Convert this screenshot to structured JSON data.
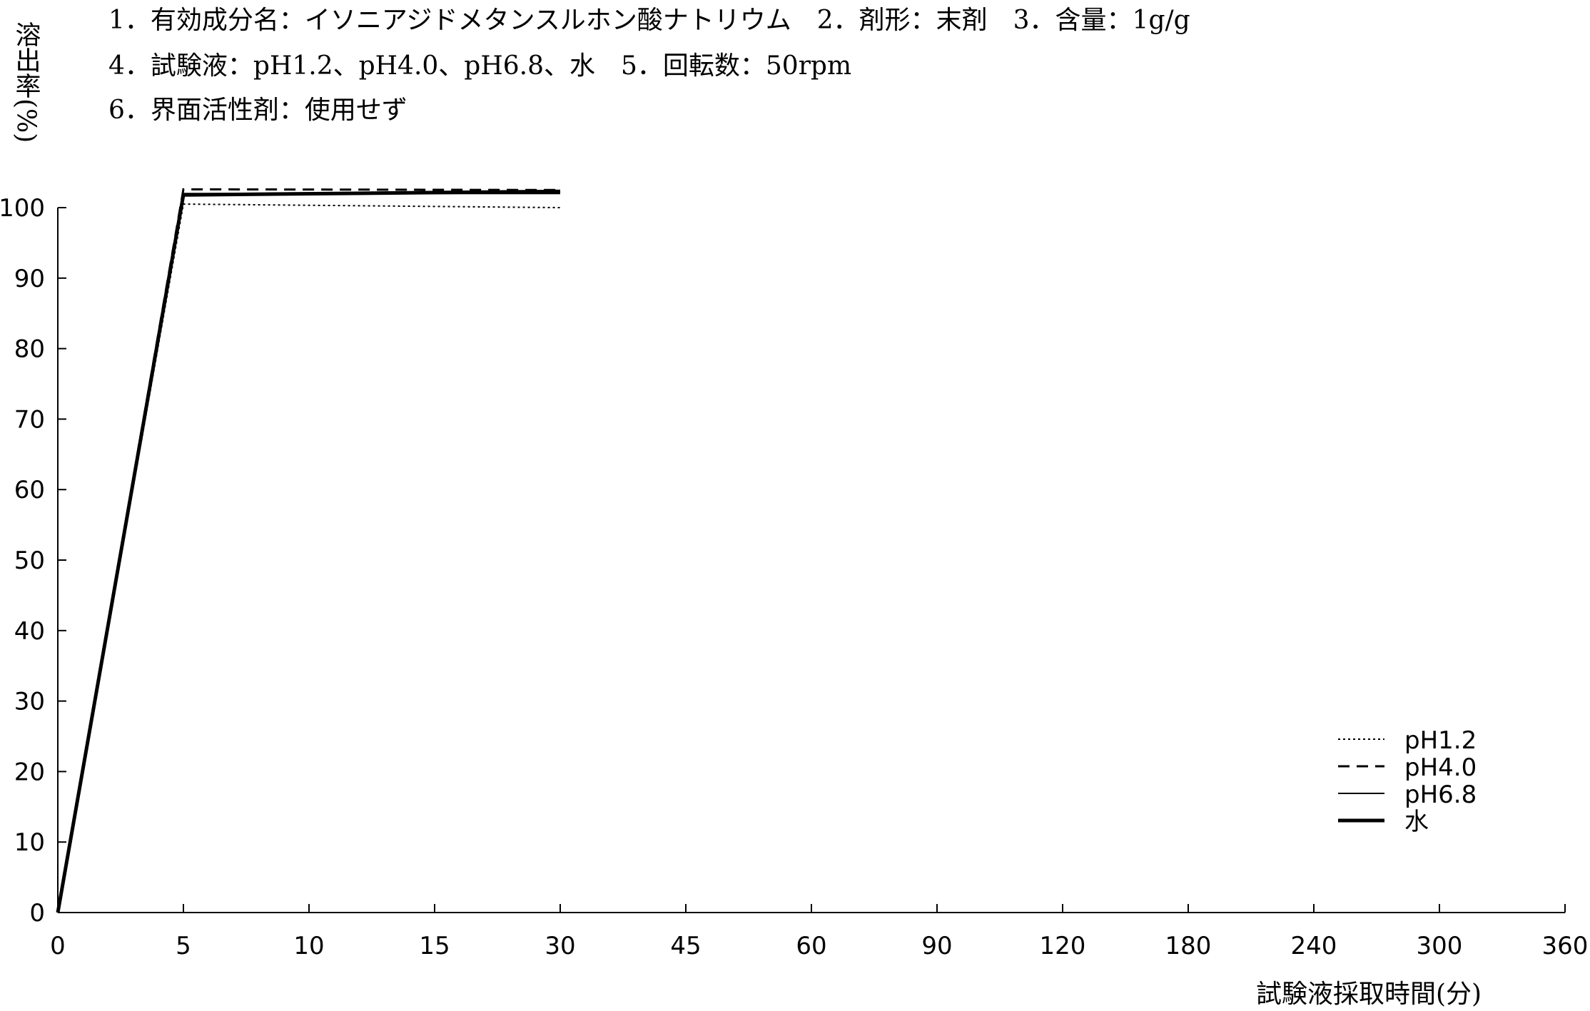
{
  "header": {
    "lines": [
      "1．有効成分名：イソニアジドメタンスルホン酸ナトリウム　2．剤形：末剤　3．含量：1g/g",
      "4．試験液：pH1.2、pH4.0、pH6.8、水　5．回転数：50rpm",
      "6．界面活性剤：使用せず"
    ]
  },
  "chart_data": {
    "type": "line",
    "ylabel": "溶出率(%)",
    "xlabel": "試験液採取時間(分)",
    "categories": [
      "0",
      "5",
      "10",
      "15",
      "30",
      "45",
      "60",
      "90",
      "120",
      "180",
      "240",
      "300",
      "360"
    ],
    "x": [
      0,
      5,
      10,
      15,
      30,
      45,
      60,
      90,
      120,
      180,
      240,
      300,
      360
    ],
    "ylim": [
      0,
      100
    ],
    "yticks": [
      "0",
      "10",
      "20",
      "30",
      "40",
      "50",
      "60",
      "70",
      "80",
      "90",
      "100"
    ],
    "grid": false,
    "legend_position": "bottom-right",
    "series": [
      {
        "name": "pH1.2",
        "style": "dotted",
        "x": [
          0,
          5,
          30
        ],
        "values": [
          0,
          100.5,
          100.0
        ]
      },
      {
        "name": "pH4.0",
        "style": "dashed",
        "x": [
          0,
          5,
          30
        ],
        "values": [
          0,
          102.6,
          102.5
        ]
      },
      {
        "name": "pH6.8",
        "style": "thin",
        "x": [
          0,
          5,
          30
        ],
        "values": [
          0,
          102.0,
          102.0
        ]
      },
      {
        "name": "水",
        "style": "thick",
        "x": [
          0,
          5,
          30
        ],
        "values": [
          0,
          101.8,
          102.3
        ]
      }
    ]
  }
}
